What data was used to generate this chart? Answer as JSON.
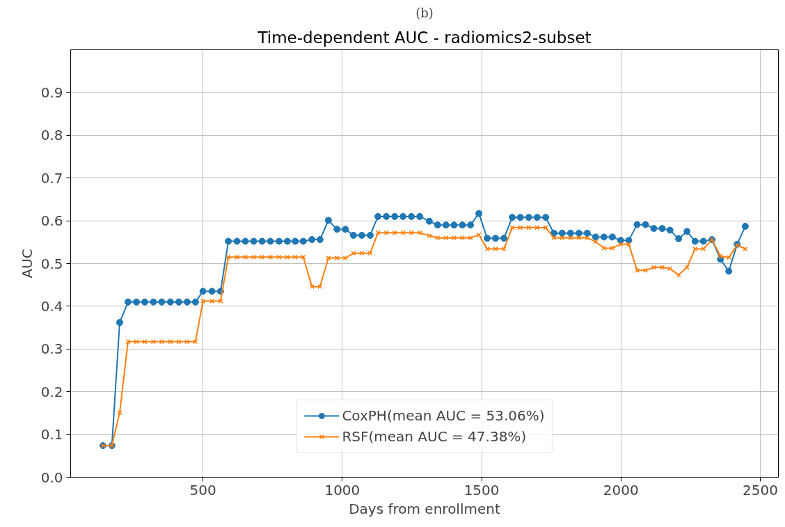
{
  "chart_data": {
    "type": "line",
    "title": "Time-dependent AUC - radiomics2-subset",
    "annotations": [
      "(b)"
    ],
    "xlabel": "Days from enrollment",
    "ylabel": "AUC",
    "x": [
      141,
      173,
      201,
      231,
      261,
      291,
      322,
      352,
      383,
      413,
      443,
      473,
      500,
      532,
      563,
      591,
      622,
      652,
      682,
      712,
      742,
      773,
      803,
      831,
      860,
      891,
      920,
      950,
      981,
      1011,
      1040,
      1070,
      1100,
      1128,
      1158,
      1188,
      1218,
      1248,
      1278,
      1312,
      1342,
      1372,
      1401,
      1431,
      1460,
      1490,
      1520,
      1550,
      1580,
      1610,
      1639,
      1669,
      1699,
      1730,
      1759,
      1789,
      1819,
      1849,
      1879,
      1909,
      1939,
      1969,
      1999,
      2028,
      2058,
      2088,
      2118,
      2148,
      2176,
      2207,
      2237,
      2266,
      2296,
      2327,
      2357,
      2387,
      2417,
      2446
    ],
    "series": [
      {
        "name": "CoxPH(mean AUC = 53.06%)",
        "color": "#1f77b4",
        "marker": "circle",
        "values": [
          0.074,
          0.074,
          0.362,
          0.41,
          0.41,
          0.41,
          0.41,
          0.41,
          0.41,
          0.41,
          0.41,
          0.41,
          0.435,
          0.435,
          0.435,
          0.552,
          0.552,
          0.552,
          0.552,
          0.552,
          0.552,
          0.552,
          0.552,
          0.552,
          0.552,
          0.556,
          0.556,
          0.601,
          0.58,
          0.58,
          0.566,
          0.566,
          0.566,
          0.61,
          0.61,
          0.61,
          0.61,
          0.61,
          0.61,
          0.599,
          0.59,
          0.59,
          0.59,
          0.59,
          0.59,
          0.617,
          0.559,
          0.559,
          0.559,
          0.608,
          0.608,
          0.608,
          0.608,
          0.608,
          0.571,
          0.571,
          0.571,
          0.571,
          0.571,
          0.562,
          0.562,
          0.562,
          0.554,
          0.554,
          0.591,
          0.591,
          0.582,
          0.582,
          0.578,
          0.558,
          0.575,
          0.552,
          0.552,
          0.556,
          0.51,
          0.482,
          0.545,
          0.587
        ]
      },
      {
        "name": "RSF(mean AUC = 47.38%)",
        "color": "#ff7f0e",
        "marker": "cross",
        "values": [
          0.074,
          0.074,
          0.151,
          0.317,
          0.317,
          0.317,
          0.317,
          0.317,
          0.317,
          0.317,
          0.317,
          0.317,
          0.412,
          0.412,
          0.412,
          0.515,
          0.515,
          0.515,
          0.515,
          0.515,
          0.515,
          0.515,
          0.515,
          0.515,
          0.515,
          0.446,
          0.446,
          0.513,
          0.513,
          0.513,
          0.524,
          0.524,
          0.524,
          0.572,
          0.572,
          0.572,
          0.572,
          0.572,
          0.572,
          0.565,
          0.56,
          0.56,
          0.56,
          0.56,
          0.56,
          0.567,
          0.534,
          0.534,
          0.534,
          0.584,
          0.584,
          0.584,
          0.584,
          0.584,
          0.56,
          0.56,
          0.56,
          0.56,
          0.56,
          0.551,
          0.536,
          0.536,
          0.545,
          0.545,
          0.484,
          0.484,
          0.491,
          0.491,
          0.488,
          0.473,
          0.491,
          0.534,
          0.534,
          0.556,
          0.517,
          0.514,
          0.543,
          0.534
        ]
      }
    ],
    "xlim": [
      25,
      2565
    ],
    "xticks": [
      500,
      1000,
      1500,
      2000,
      2500
    ],
    "ylim": [
      0,
      1
    ],
    "yticks": [
      {
        "value": 0,
        "label": "0.0"
      },
      0.1,
      0.2,
      0.3,
      0.4,
      0.5,
      0.6,
      0.7,
      0.8,
      0.9
    ],
    "grid": true,
    "legend": "bottom"
  }
}
